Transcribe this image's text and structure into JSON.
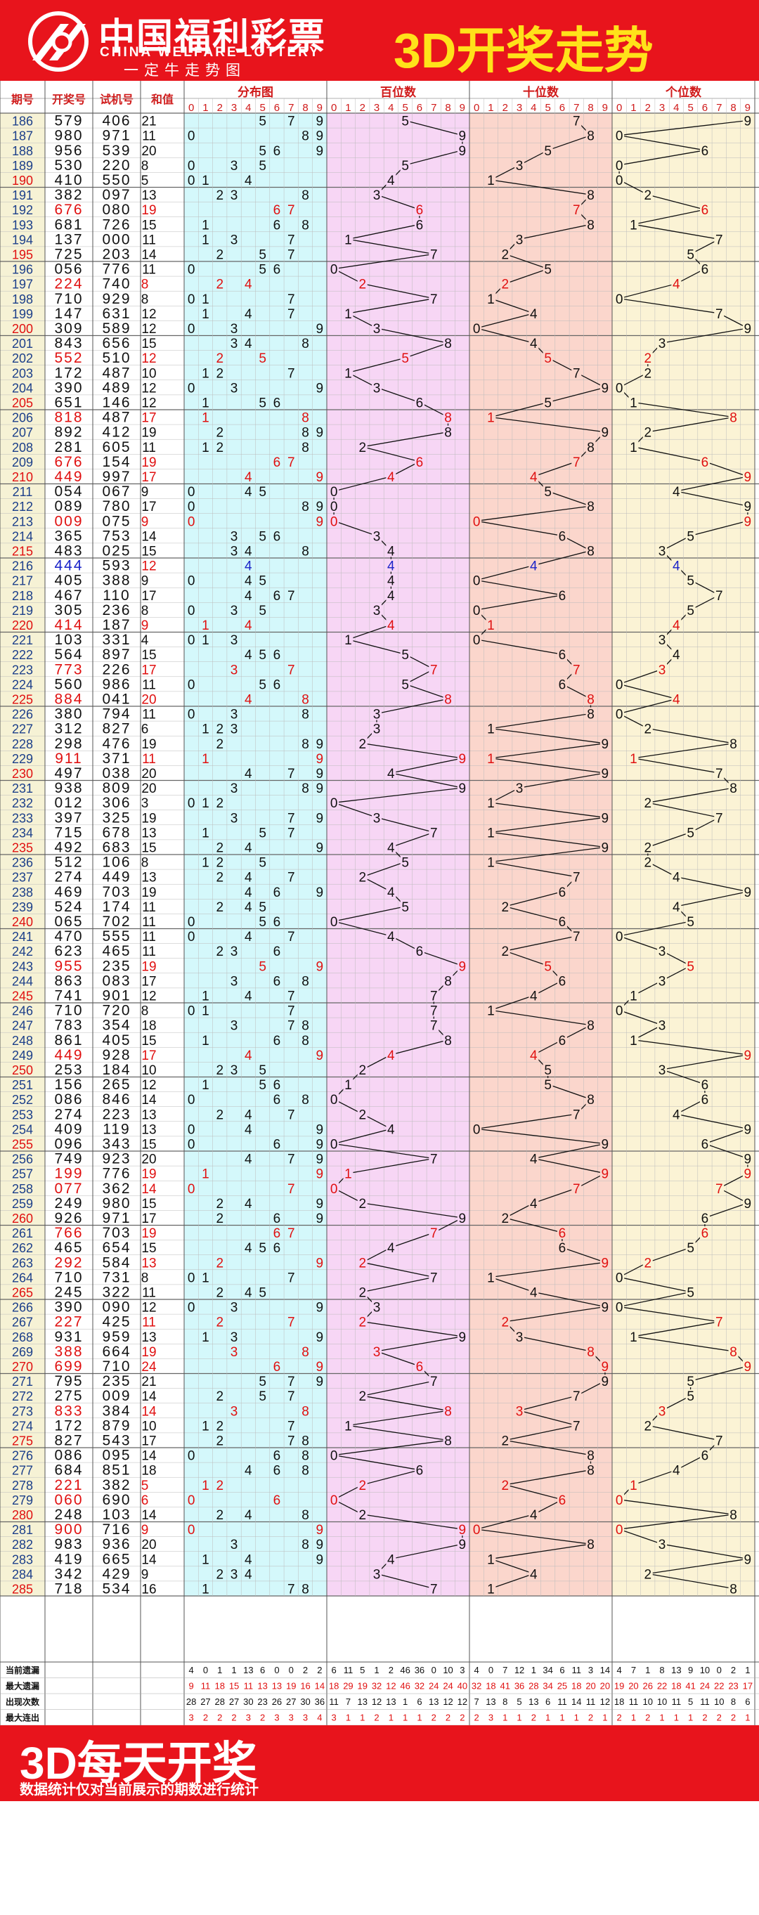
{
  "header": {
    "brand_cn": "中国福利彩票",
    "brand_en": "CHINA WELFARE LOTTERY",
    "slogan": "一定牛走势图",
    "title": "3D开奖走势"
  },
  "footer": {
    "title": "3D每天开奖",
    "note": "数据统计仅对当前展示的期数进行统计"
  },
  "colors": {
    "brand_red": "#e8141c",
    "title_yellow": "#ffe21a"
  },
  "chart_data": {
    "type": "table",
    "title": "3D开奖走势",
    "columns": [
      "期号",
      "开奖号",
      "试机号",
      "和值",
      "分布图",
      "百位数",
      "十位数",
      "个位数"
    ],
    "digit_labels": [
      "0",
      "1",
      "2",
      "3",
      "4",
      "5",
      "6",
      "7",
      "8",
      "9"
    ],
    "periods": [
      "186",
      "187",
      "188",
      "189",
      "190",
      "191",
      "192",
      "193",
      "194",
      "195",
      "196",
      "197",
      "198",
      "199",
      "200",
      "201",
      "202",
      "203",
      "204",
      "205",
      "206",
      "207",
      "208",
      "209",
      "210",
      "211",
      "212",
      "213",
      "214",
      "215",
      "216",
      "217",
      "218",
      "219",
      "220",
      "221",
      "222",
      "223",
      "224",
      "225",
      "226",
      "227",
      "228",
      "229",
      "230",
      "231",
      "232",
      "233",
      "234",
      "235",
      "236",
      "237",
      "238",
      "239",
      "240",
      "241",
      "242",
      "243",
      "244",
      "245",
      "246",
      "247",
      "248",
      "249",
      "250",
      "251",
      "252",
      "253",
      "254",
      "255",
      "256",
      "257",
      "258",
      "259",
      "260",
      "261",
      "262",
      "263",
      "264",
      "265",
      "266",
      "267",
      "268",
      "269",
      "270",
      "271",
      "272",
      "273",
      "274",
      "275",
      "276",
      "277",
      "278",
      "279",
      "280",
      "281",
      "282",
      "283",
      "284",
      "285"
    ],
    "draws": [
      "579",
      "980",
      "956",
      "530",
      "410",
      "382",
      "676",
      "681",
      "137",
      "725",
      "056",
      "224",
      "710",
      "147",
      "309",
      "843",
      "552",
      "172",
      "390",
      "651",
      "818",
      "892",
      "281",
      "676",
      "449",
      "054",
      "089",
      "009",
      "365",
      "483",
      "444",
      "405",
      "467",
      "305",
      "414",
      "103",
      "564",
      "773",
      "560",
      "884",
      "380",
      "312",
      "298",
      "911",
      "497",
      "938",
      "012",
      "397",
      "715",
      "492",
      "512",
      "274",
      "469",
      "524",
      "065",
      "470",
      "623",
      "955",
      "863",
      "741",
      "710",
      "783",
      "861",
      "449",
      "253",
      "156",
      "086",
      "274",
      "409",
      "096",
      "749",
      "199",
      "077",
      "249",
      "926",
      "766",
      "465",
      "292",
      "710",
      "245",
      "390",
      "227",
      "931",
      "388",
      "699",
      "795",
      "275",
      "833",
      "172",
      "827",
      "086",
      "684",
      "221",
      "060",
      "248",
      "900",
      "983",
      "419",
      "342",
      "718"
    ],
    "tests": [
      "406",
      "971",
      "539",
      "220",
      "550",
      "097",
      "080",
      "726",
      "000",
      "203",
      "776",
      "740",
      "929",
      "631",
      "589",
      "656",
      "510",
      "487",
      "489",
      "146",
      "487",
      "412",
      "605",
      "154",
      "997",
      "067",
      "780",
      "075",
      "753",
      "025",
      "593",
      "388",
      "110",
      "236",
      "187",
      "331",
      "897",
      "226",
      "986",
      "041",
      "794",
      "827",
      "476",
      "371",
      "038",
      "809",
      "306",
      "325",
      "678",
      "683",
      "106",
      "449",
      "703",
      "174",
      "702",
      "555",
      "465",
      "235",
      "083",
      "901",
      "720",
      "354",
      "405",
      "928",
      "184",
      "265",
      "846",
      "223",
      "119",
      "343",
      "923",
      "776",
      "362",
      "980",
      "971",
      "703",
      "654",
      "584",
      "731",
      "322",
      "090",
      "425",
      "959",
      "664",
      "710",
      "235",
      "009",
      "384",
      "879",
      "543",
      "095",
      "851",
      "382",
      "690",
      "103",
      "716",
      "936",
      "665",
      "429",
      "534"
    ],
    "sums": [
      "21",
      "11",
      "20",
      "8",
      "5",
      "13",
      "19",
      "15",
      "11",
      "14",
      "11",
      "8",
      "8",
      "12",
      "12",
      "15",
      "12",
      "10",
      "12",
      "12",
      "17",
      "19",
      "11",
      "19",
      "17",
      "9",
      "17",
      "9",
      "14",
      "15",
      "12",
      "9",
      "17",
      "8",
      "9",
      "4",
      "15",
      "17",
      "11",
      "20",
      "11",
      "6",
      "19",
      "11",
      "20",
      "20",
      "3",
      "19",
      "13",
      "15",
      "8",
      "13",
      "19",
      "11",
      "11",
      "11",
      "11",
      "19",
      "17",
      "12",
      "8",
      "18",
      "15",
      "17",
      "10",
      "12",
      "14",
      "13",
      "13",
      "15",
      "20",
      "19",
      "14",
      "15",
      "17",
      "19",
      "15",
      "13",
      "8",
      "11",
      "12",
      "11",
      "13",
      "19",
      "24",
      "21",
      "14",
      "14",
      "10",
      "17",
      "14",
      "18",
      "5",
      "6",
      "14",
      "9",
      "20",
      "14",
      "9",
      "16"
    ],
    "footer_stats": {
      "labels": [
        "当前遗漏",
        "最大遗漏",
        "出现次数",
        "最大连出"
      ],
      "distribution": {
        "current_miss": [
          4,
          0,
          1,
          1,
          13,
          6,
          0,
          0,
          2,
          2
        ],
        "max_miss": [
          9,
          11,
          18,
          15,
          11,
          13,
          13,
          19,
          16,
          14
        ],
        "occurrences": [
          28,
          27,
          28,
          27,
          30,
          23,
          26,
          27,
          30,
          36
        ],
        "max_streak": [
          3,
          2,
          2,
          2,
          3,
          2,
          3,
          3,
          3,
          4
        ]
      },
      "hundreds": {
        "current_miss": [
          6,
          11,
          5,
          1,
          2,
          46,
          36,
          0,
          10,
          3
        ],
        "max_miss": [
          18,
          29,
          19,
          32,
          12,
          46,
          32,
          24,
          24,
          40
        ],
        "occurrences": [
          11,
          7,
          13,
          12,
          13,
          1,
          6,
          13,
          12,
          12
        ],
        "max_streak": [
          3,
          1,
          1,
          2,
          1,
          1,
          1,
          2,
          2,
          2
        ]
      },
      "tens": {
        "current_miss": [
          4,
          0,
          7,
          12,
          1,
          34,
          6,
          11,
          3,
          14
        ],
        "max_miss": [
          32,
          18,
          41,
          36,
          28,
          34,
          25,
          18,
          20,
          20
        ],
        "occurrences": [
          7,
          13,
          8,
          5,
          13,
          6,
          11,
          14,
          11,
          12
        ],
        "max_streak": [
          2,
          3,
          1,
          1,
          2,
          1,
          1,
          1,
          2,
          1
        ]
      },
      "units": {
        "current_miss": [
          4,
          7,
          1,
          8,
          13,
          9,
          10,
          0,
          2,
          1
        ],
        "max_miss": [
          19,
          20,
          26,
          22,
          18,
          41,
          24,
          22,
          23,
          17
        ],
        "occurrences": [
          18,
          11,
          10,
          10,
          11,
          5,
          11,
          10,
          8,
          6
        ],
        "max_streak": [
          2,
          1,
          2,
          1,
          1,
          1,
          2,
          2,
          2,
          1
        ]
      }
    }
  }
}
